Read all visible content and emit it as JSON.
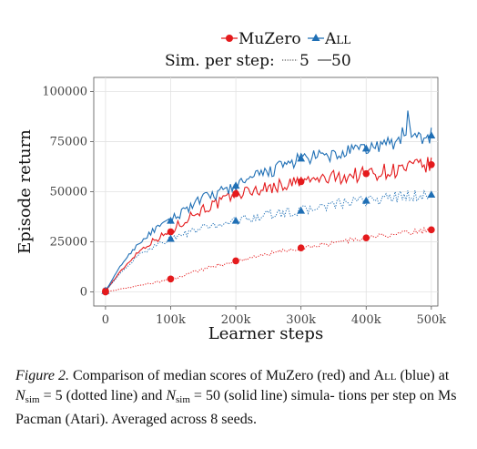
{
  "chart_data": {
    "type": "line",
    "xlabel": "Learner steps",
    "ylabel": "Episode return",
    "xlim": [
      -18000,
      510000
    ],
    "ylim": [
      -7000,
      107000
    ],
    "x_ticks": [
      0,
      100000,
      200000,
      300000,
      400000,
      500000
    ],
    "x_tick_labels": [
      "0",
      "100k",
      "200k",
      "300k",
      "400k",
      "500k"
    ],
    "y_ticks": [
      0,
      25000,
      50000,
      75000,
      100000
    ],
    "y_tick_labels": [
      "0",
      "25000",
      "50000",
      "75000",
      "100000"
    ],
    "grid": true,
    "legend": {
      "placement": "top-right",
      "algorithms": [
        {
          "name": "MuZero",
          "color": "#e41a1c",
          "marker": "circle"
        },
        {
          "name": "All",
          "color": "#1f6fb5",
          "marker": "triangle"
        }
      ],
      "sim_title": "Sim. per step:",
      "sim_entries": [
        {
          "name": "5",
          "style": "dotted"
        },
        {
          "name": "50",
          "style": "solid"
        }
      ]
    },
    "series": [
      {
        "algorithm": "MuZero",
        "sim": "50",
        "color": "#e41a1c",
        "dash": "solid",
        "x": [
          0,
          25000,
          50000,
          75000,
          100000,
          125000,
          150000,
          175000,
          200000,
          250000,
          300000,
          350000,
          400000,
          450000,
          500000
        ],
        "y": [
          500,
          11000,
          20000,
          26000,
          30000,
          37000,
          41500,
          44500,
          49000,
          52000,
          55000,
          57000,
          59000,
          61000,
          63500
        ]
      },
      {
        "algorithm": "All",
        "sim": "50",
        "color": "#1f6fb5",
        "dash": "solid",
        "x": [
          0,
          25000,
          50000,
          75000,
          100000,
          125000,
          150000,
          175000,
          200000,
          250000,
          300000,
          350000,
          400000,
          450000,
          500000
        ],
        "y": [
          500,
          14000,
          24000,
          31000,
          35500,
          42000,
          46500,
          49500,
          53000,
          60000,
          66500,
          68000,
          71500,
          75000,
          78000
        ]
      },
      {
        "algorithm": "All",
        "sim": "5",
        "color": "#1f6fb5",
        "dash": "dotted",
        "x": [
          0,
          25000,
          50000,
          75000,
          100000,
          150000,
          200000,
          250000,
          300000,
          350000,
          400000,
          450000,
          500000
        ],
        "y": [
          500,
          10000,
          18000,
          23000,
          26500,
          32000,
          35500,
          38500,
          40500,
          43500,
          45500,
          47500,
          48500
        ]
      },
      {
        "algorithm": "MuZero",
        "sim": "5",
        "color": "#e41a1c",
        "dash": "dotted",
        "x": [
          0,
          50000,
          100000,
          150000,
          200000,
          250000,
          300000,
          350000,
          400000,
          450000,
          500000
        ],
        "y": [
          0,
          3000,
          6500,
          11500,
          15500,
          19000,
          22000,
          24500,
          27000,
          29000,
          31000
        ]
      }
    ],
    "markers": {
      "x": [
        0,
        100000,
        200000,
        300000,
        400000,
        500000
      ],
      "series": [
        {
          "algorithm": "MuZero",
          "sim": "50",
          "y": [
            500,
            30000,
            49000,
            55000,
            59000,
            63500
          ]
        },
        {
          "algorithm": "All",
          "sim": "50",
          "y": [
            500,
            35500,
            53000,
            66500,
            71500,
            78000
          ]
        },
        {
          "algorithm": "All",
          "sim": "5",
          "y": [
            500,
            26500,
            35500,
            40500,
            45500,
            48500
          ]
        },
        {
          "algorithm": "MuZero",
          "sim": "5",
          "y": [
            0,
            6500,
            15500,
            22000,
            27000,
            31000
          ]
        }
      ]
    }
  },
  "caption": {
    "label": "Figure 2.",
    "text1": "Comparison of median scores of MuZero (red) and",
    "all": "All",
    "text2": "(blue) at",
    "nsim": "N",
    "nsim_sub": "sim",
    "eq5": "= 5 (dotted line) and",
    "eq50": "= 50 (solid line) simula-",
    "text3": "tions per step on Ms Pacman (Atari). Averaged across 8 seeds."
  }
}
